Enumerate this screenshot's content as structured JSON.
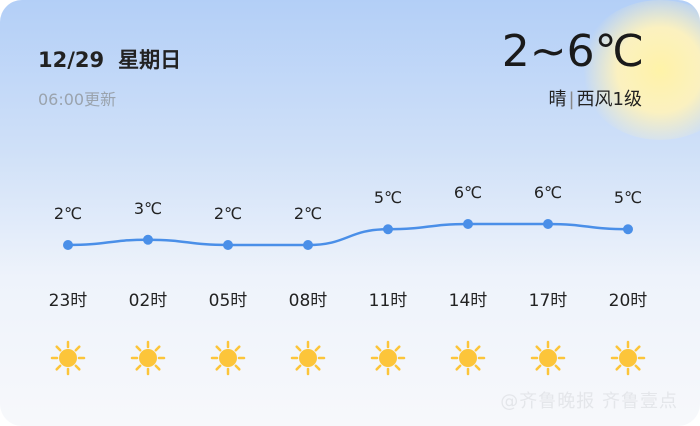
{
  "header": {
    "date": "12/29",
    "weekday": "星期日",
    "updated": "06:00更新",
    "temp_range": "2~6℃",
    "condition": "晴",
    "separator": "|",
    "wind": "西风1级"
  },
  "hourly": [
    {
      "hour": "23时",
      "temp": 2,
      "temp_label": "2℃",
      "icon": "sunny-icon"
    },
    {
      "hour": "02时",
      "temp": 3,
      "temp_label": "3℃",
      "icon": "sunny-icon"
    },
    {
      "hour": "05时",
      "temp": 2,
      "temp_label": "2℃",
      "icon": "sunny-icon"
    },
    {
      "hour": "08时",
      "temp": 2,
      "temp_label": "2℃",
      "icon": "sunny-icon"
    },
    {
      "hour": "11时",
      "temp": 5,
      "temp_label": "5℃",
      "icon": "sunny-icon"
    },
    {
      "hour": "14时",
      "temp": 6,
      "temp_label": "6℃",
      "icon": "sunny-icon"
    },
    {
      "hour": "17时",
      "temp": 6,
      "temp_label": "6℃",
      "icon": "sunny-icon"
    },
    {
      "hour": "20时",
      "temp": 5,
      "temp_label": "5℃",
      "icon": "sunny-icon"
    }
  ],
  "colors": {
    "line": "#4a8fe8",
    "sun": "#fcc53a"
  },
  "watermark": "@齐鲁晚报 齐鲁壹点"
}
